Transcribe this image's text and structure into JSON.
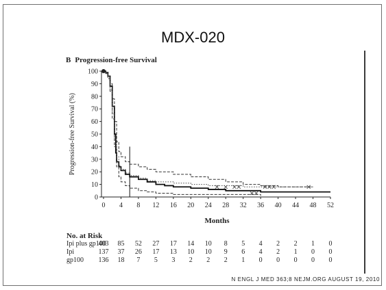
{
  "slide": {
    "title": "MDX-020",
    "citation": "N ENGL J MED 363;8   NEJM.ORG   AUGUST 19, 2010"
  },
  "panel": {
    "letter": "B",
    "title": "Progression-free Survival"
  },
  "chart_data": {
    "type": "line",
    "title": "Progression-free Survival",
    "xlabel": "Months",
    "ylabel": "Progression-free Survival (%)",
    "xlim": [
      0,
      52
    ],
    "ylim": [
      0,
      100
    ],
    "x_ticks": [
      0,
      4,
      8,
      12,
      16,
      20,
      24,
      28,
      32,
      36,
      40,
      44,
      48,
      52
    ],
    "y_ticks": [
      0,
      10,
      20,
      30,
      40,
      50,
      60,
      70,
      80,
      90,
      100
    ],
    "reference_line_x": 6,
    "series": [
      {
        "style": "solid",
        "color": "#111111",
        "x": [
          0,
          0.5,
          1,
          1.5,
          2,
          2.5,
          2.8,
          3,
          3.5,
          4,
          5,
          6,
          8,
          10,
          12,
          14,
          16,
          20,
          24,
          28,
          32,
          36,
          40,
          44,
          48,
          52
        ],
        "y": [
          100,
          99,
          96,
          88,
          72,
          50,
          35,
          28,
          24,
          21,
          18,
          16,
          14,
          12,
          10,
          9,
          8,
          7,
          6,
          5,
          5,
          4,
          4,
          4,
          4,
          4
        ]
      },
      {
        "style": "dashed",
        "color": "#333333",
        "x": [
          0,
          0.5,
          1,
          1.5,
          2,
          2.5,
          3,
          3.5,
          4,
          5,
          6,
          8,
          10,
          12,
          16,
          20,
          24,
          28,
          32,
          36,
          40,
          44,
          48
        ],
        "y": [
          100,
          99,
          96,
          90,
          78,
          60,
          44,
          36,
          32,
          28,
          26,
          24,
          22,
          20,
          18,
          16,
          14,
          12,
          10,
          9,
          8,
          8,
          8
        ]
      },
      {
        "style": "dashed",
        "color": "#333333",
        "x": [
          0,
          0.5,
          1,
          1.5,
          2,
          2.5,
          3,
          3.5,
          4,
          5,
          6,
          8,
          10,
          12,
          16,
          20,
          24,
          28,
          32,
          36
        ],
        "y": [
          100,
          98,
          94,
          84,
          62,
          40,
          24,
          16,
          12,
          9,
          7,
          5,
          4,
          3,
          2,
          2,
          2,
          2,
          2,
          1
        ]
      },
      {
        "style": "dotted",
        "color": "#444444",
        "x": [
          0,
          0.5,
          1,
          1.5,
          2,
          2.5,
          3,
          3.5,
          4,
          5,
          6,
          8,
          10,
          12,
          16,
          20,
          24,
          28,
          32,
          36,
          40,
          44,
          48
        ],
        "y": [
          100,
          99,
          95,
          85,
          66,
          45,
          32,
          25,
          22,
          19,
          17,
          15,
          13,
          12,
          11,
          10,
          9,
          9,
          8,
          8,
          8,
          8,
          8
        ]
      }
    ],
    "censor_marks": [
      {
        "x": 26,
        "y": 8
      },
      {
        "x": 28,
        "y": 8
      },
      {
        "x": 30,
        "y": 8
      },
      {
        "x": 31,
        "y": 8
      },
      {
        "x": 37,
        "y": 8
      },
      {
        "x": 38,
        "y": 8
      },
      {
        "x": 39,
        "y": 8
      },
      {
        "x": 47,
        "y": 8
      },
      {
        "x": 34,
        "y": 3
      },
      {
        "x": 35,
        "y": 3
      }
    ]
  },
  "risk_table": {
    "header": "No. at Risk",
    "times": [
      0,
      4,
      8,
      12,
      16,
      20,
      24,
      28,
      32,
      36,
      40,
      44,
      48,
      52
    ],
    "rows": [
      {
        "label": "Ipi plus gp100",
        "values": [
          "403",
          "85",
          "52",
          "27",
          "17",
          "14",
          "10",
          "8",
          "5",
          "4",
          "2",
          "2",
          "1",
          "0"
        ]
      },
      {
        "label": "Ipi",
        "values": [
          "137",
          "37",
          "26",
          "17",
          "13",
          "10",
          "10",
          "9",
          "6",
          "4",
          "2",
          "1",
          "0",
          "0"
        ]
      },
      {
        "label": "gp100",
        "values": [
          "136",
          "18",
          "7",
          "5",
          "3",
          "2",
          "2",
          "2",
          "1",
          "0",
          "0",
          "0",
          "0",
          "0"
        ]
      }
    ]
  }
}
